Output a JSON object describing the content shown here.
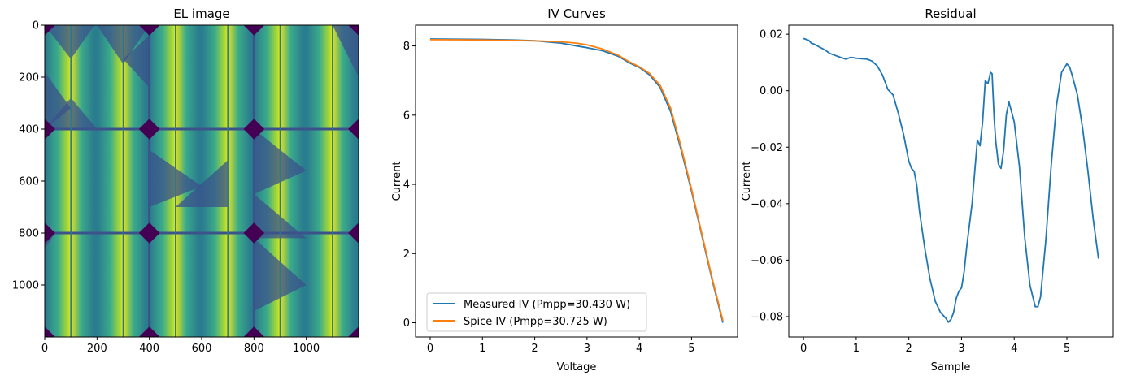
{
  "colors": {
    "measured": "#1f77b4",
    "spice": "#ff7f0e",
    "residual": "#1f77b4",
    "viridis_dark": "#440154",
    "viridis_mid": "#21918c",
    "viridis_bright": "#fde725"
  },
  "chart_data": [
    {
      "type": "heatmap",
      "title": "EL image",
      "colormap": "viridis",
      "xlim": [
        0,
        1200
      ],
      "ylim": [
        1200,
        0
      ],
      "x_ticks": [
        "0",
        "200",
        "400",
        "600",
        "800",
        "1000"
      ],
      "y_ticks": [
        "0",
        "200",
        "400",
        "600",
        "800",
        "1000"
      ],
      "grid": false
    },
    {
      "type": "line",
      "title": "IV Curves",
      "xlabel": "Voltage",
      "ylabel": "Current",
      "xlim": [
        -0.28,
        5.88
      ],
      "ylim": [
        -0.41,
        8.6
      ],
      "x_ticks": [
        "0",
        "1",
        "2",
        "3",
        "4",
        "5"
      ],
      "y_ticks": [
        "0",
        "2",
        "4",
        "6",
        "8"
      ],
      "legend_position": "lower-left",
      "grid": false,
      "series": [
        {
          "name": "Measured IV (Pmpp=30.430 W)",
          "x": [
            0,
            0.5,
            1.0,
            1.5,
            2.0,
            2.5,
            2.8,
            3.0,
            3.3,
            3.6,
            3.8,
            4.0,
            4.2,
            4.4,
            4.6,
            4.8,
            5.0,
            5.2,
            5.4,
            5.6
          ],
          "y": [
            8.2,
            8.195,
            8.19,
            8.175,
            8.15,
            8.08,
            8.0,
            7.95,
            7.86,
            7.7,
            7.52,
            7.38,
            7.16,
            6.8,
            6.1,
            5.0,
            3.8,
            2.5,
            1.2,
            0.0
          ]
        },
        {
          "name": "Spice IV (Pmpp=30.725 W)",
          "x": [
            0,
            0.5,
            1.0,
            1.5,
            2.0,
            2.5,
            2.8,
            3.0,
            3.3,
            3.6,
            3.8,
            4.0,
            4.2,
            4.4,
            4.6,
            4.8,
            5.0,
            5.2,
            5.4,
            5.6
          ],
          "y": [
            8.18,
            8.178,
            8.172,
            8.16,
            8.145,
            8.12,
            8.08,
            8.03,
            7.91,
            7.73,
            7.55,
            7.4,
            7.2,
            6.86,
            6.2,
            5.08,
            3.86,
            2.55,
            1.25,
            0.06
          ]
        }
      ]
    },
    {
      "type": "line",
      "title": "Residual",
      "xlabel": "Sample",
      "ylabel": "Current",
      "xlim": [
        -0.28,
        5.88
      ],
      "ylim": [
        -0.0872,
        0.0232
      ],
      "x_ticks": [
        "0",
        "1",
        "2",
        "3",
        "4",
        "5"
      ],
      "y_ticks": [
        "0.02",
        "0.00",
        "−0.02",
        "−0.04",
        "−0.06",
        "−0.08"
      ],
      "grid": false,
      "series": [
        {
          "x": [
            0.0,
            0.1,
            0.15,
            0.2,
            0.3,
            0.4,
            0.5,
            0.6,
            0.7,
            0.8,
            0.9,
            1.0,
            1.1,
            1.2,
            1.3,
            1.4,
            1.5,
            1.6,
            1.7,
            1.8,
            1.9,
            2.0,
            2.05,
            2.1,
            2.15,
            2.2,
            2.3,
            2.4,
            2.5,
            2.6,
            2.7,
            2.75,
            2.8,
            2.85,
            2.9,
            2.95,
            3.0,
            3.05,
            3.1,
            3.2,
            3.3,
            3.35,
            3.4,
            3.45,
            3.5,
            3.52,
            3.55,
            3.58,
            3.6,
            3.62,
            3.65,
            3.7,
            3.75,
            3.8,
            3.85,
            3.9,
            3.95,
            4.0,
            4.1,
            4.2,
            4.3,
            4.4,
            4.45,
            4.5,
            4.6,
            4.7,
            4.8,
            4.9,
            5.0,
            5.05,
            5.1,
            5.2,
            5.3,
            5.4,
            5.5,
            5.6
          ],
          "y": [
            0.0185,
            0.0178,
            0.0168,
            0.0165,
            0.0155,
            0.0145,
            0.0132,
            0.0125,
            0.0118,
            0.0112,
            0.0118,
            0.0115,
            0.0113,
            0.0112,
            0.0105,
            0.0088,
            0.0055,
            0.0005,
            -0.0015,
            -0.008,
            -0.0155,
            -0.025,
            -0.0275,
            -0.0285,
            -0.0335,
            -0.0425,
            -0.0555,
            -0.0665,
            -0.0745,
            -0.0785,
            -0.0805,
            -0.082,
            -0.081,
            -0.0785,
            -0.0735,
            -0.071,
            -0.0698,
            -0.064,
            -0.055,
            -0.04,
            -0.0175,
            -0.0195,
            -0.011,
            0.0035,
            0.0025,
            0.004,
            0.0065,
            0.006,
            -0.002,
            -0.01,
            -0.018,
            -0.026,
            -0.0275,
            -0.021,
            -0.0085,
            -0.004,
            -0.0075,
            -0.011,
            -0.027,
            -0.052,
            -0.069,
            -0.0765,
            -0.0765,
            -0.073,
            -0.053,
            -0.027,
            -0.0055,
            0.0065,
            0.0095,
            0.0085,
            0.0055,
            -0.0015,
            -0.0135,
            -0.0285,
            -0.0455,
            -0.0595
          ]
        }
      ]
    }
  ]
}
